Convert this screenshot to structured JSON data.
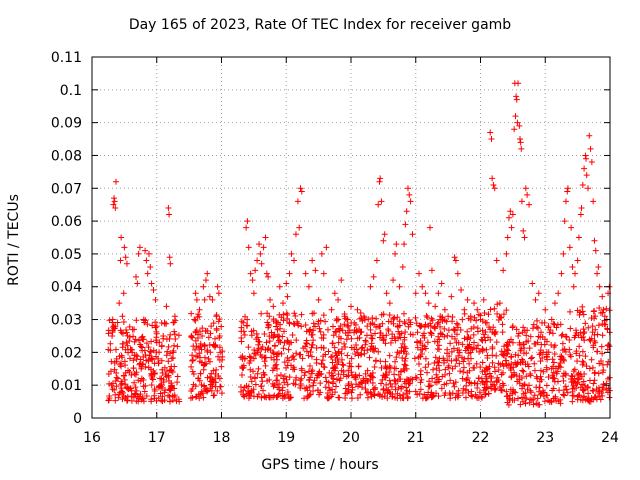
{
  "chart_data": {
    "type": "scatter",
    "title": "Day 165 of 2023, Rate Of TEC Index for receiver gamb",
    "xlabel": "GPS time / hours",
    "ylabel": "ROTI / TECUs",
    "xlim": [
      16,
      24
    ],
    "ylim": [
      0,
      0.11
    ],
    "x_ticks": [
      16,
      17,
      18,
      19,
      20,
      21,
      22,
      23,
      24
    ],
    "x_tick_labels": [
      "16",
      "17",
      "18",
      "19",
      "20",
      "21",
      "22",
      "23",
      "24"
    ],
    "y_ticks": [
      0,
      0.01,
      0.02,
      0.03,
      0.04,
      0.05,
      0.06,
      0.07,
      0.08,
      0.09,
      0.1,
      0.11
    ],
    "y_tick_labels": [
      "0",
      "0.01",
      "0.02",
      "0.03",
      "0.04",
      "0.05",
      "0.06",
      "0.07",
      "0.08",
      "0.09",
      "0.1",
      "0.11"
    ],
    "grid": true,
    "marker": "+",
    "marker_color": "#ff0000",
    "series": [
      {
        "name": "ROTI",
        "points": [
          [
            16.3,
            0.01
          ],
          [
            16.31,
            0.025
          ],
          [
            16.32,
            0.03
          ],
          [
            16.33,
            0.065
          ],
          [
            16.34,
            0.067
          ],
          [
            16.35,
            0.066
          ],
          [
            16.36,
            0.064
          ],
          [
            16.37,
            0.072
          ],
          [
            16.38,
            0.018
          ],
          [
            16.4,
            0.012
          ],
          [
            16.42,
            0.035
          ],
          [
            16.44,
            0.048
          ],
          [
            16.45,
            0.055
          ],
          [
            16.47,
            0.031
          ],
          [
            16.49,
            0.038
          ],
          [
            16.5,
            0.052
          ],
          [
            16.52,
            0.049
          ],
          [
            16.54,
            0.047
          ],
          [
            16.55,
            0.022
          ],
          [
            16.58,
            0.014
          ],
          [
            16.6,
            0.009
          ],
          [
            16.62,
            0.02
          ],
          [
            16.65,
            0.027
          ],
          [
            16.68,
            0.043
          ],
          [
            16.7,
            0.041
          ],
          [
            16.72,
            0.05
          ],
          [
            16.74,
            0.052
          ],
          [
            16.76,
            0.015
          ],
          [
            16.78,
            0.024
          ],
          [
            16.8,
            0.03
          ],
          [
            16.82,
            0.051
          ],
          [
            16.84,
            0.048
          ],
          [
            16.86,
            0.044
          ],
          [
            16.88,
            0.05
          ],
          [
            16.9,
            0.046
          ],
          [
            16.92,
            0.041
          ],
          [
            16.95,
            0.039
          ],
          [
            16.98,
            0.036
          ],
          [
            17.0,
            0.028
          ],
          [
            17.02,
            0.018
          ],
          [
            17.05,
            0.012
          ],
          [
            17.08,
            0.022
          ],
          [
            17.1,
            0.025
          ],
          [
            17.12,
            0.029
          ],
          [
            17.15,
            0.034
          ],
          [
            17.18,
            0.064
          ],
          [
            17.19,
            0.062
          ],
          [
            17.2,
            0.049
          ],
          [
            17.21,
            0.047
          ],
          [
            17.25,
            0.02
          ],
          [
            17.28,
            0.031
          ],
          [
            17.58,
            0.03
          ],
          [
            17.6,
            0.038
          ],
          [
            17.62,
            0.036
          ],
          [
            17.64,
            0.012
          ],
          [
            17.66,
            0.033
          ],
          [
            17.7,
            0.025
          ],
          [
            17.72,
            0.04
          ],
          [
            17.74,
            0.036
          ],
          [
            17.76,
            0.042
          ],
          [
            17.78,
            0.044
          ],
          [
            17.8,
            0.018
          ],
          [
            17.82,
            0.037
          ],
          [
            17.84,
            0.028
          ],
          [
            17.86,
            0.036
          ],
          [
            17.88,
            0.011
          ],
          [
            17.9,
            0.022
          ],
          [
            17.92,
            0.031
          ],
          [
            17.94,
            0.04
          ],
          [
            17.96,
            0.038
          ],
          [
            17.98,
            0.02
          ],
          [
            18.38,
            0.058
          ],
          [
            18.4,
            0.06
          ],
          [
            18.42,
            0.052
          ],
          [
            18.45,
            0.044
          ],
          [
            18.48,
            0.042
          ],
          [
            18.5,
            0.038
          ],
          [
            18.52,
            0.045
          ],
          [
            18.55,
            0.048
          ],
          [
            18.58,
            0.053
          ],
          [
            18.6,
            0.05
          ],
          [
            18.62,
            0.047
          ],
          [
            18.65,
            0.052
          ],
          [
            18.68,
            0.055
          ],
          [
            18.7,
            0.044
          ],
          [
            18.72,
            0.043
          ],
          [
            18.75,
            0.036
          ],
          [
            18.8,
            0.034
          ],
          [
            18.85,
            0.029
          ],
          [
            18.9,
            0.04
          ],
          [
            18.95,
            0.035
          ],
          [
            19.0,
            0.041
          ],
          [
            19.02,
            0.037
          ],
          [
            19.05,
            0.044
          ],
          [
            19.08,
            0.05
          ],
          [
            19.12,
            0.048
          ],
          [
            19.15,
            0.056
          ],
          [
            19.18,
            0.066
          ],
          [
            19.2,
            0.058
          ],
          [
            19.22,
            0.07
          ],
          [
            19.24,
            0.069
          ],
          [
            19.3,
            0.044
          ],
          [
            19.35,
            0.04
          ],
          [
            19.4,
            0.048
          ],
          [
            19.45,
            0.045
          ],
          [
            19.5,
            0.036
          ],
          [
            19.55,
            0.05
          ],
          [
            19.58,
            0.044
          ],
          [
            19.62,
            0.052
          ],
          [
            19.7,
            0.033
          ],
          [
            19.75,
            0.038
          ],
          [
            19.8,
            0.036
          ],
          [
            19.85,
            0.042
          ],
          [
            19.9,
            0.031
          ],
          [
            19.95,
            0.03
          ],
          [
            20.0,
            0.034
          ],
          [
            20.05,
            0.029
          ],
          [
            20.1,
            0.033
          ],
          [
            20.15,
            0.032
          ],
          [
            20.2,
            0.031
          ],
          [
            20.25,
            0.028
          ],
          [
            20.3,
            0.04
          ],
          [
            20.35,
            0.043
          ],
          [
            20.4,
            0.048
          ],
          [
            20.42,
            0.065
          ],
          [
            20.44,
            0.072
          ],
          [
            20.45,
            0.073
          ],
          [
            20.47,
            0.066
          ],
          [
            20.5,
            0.054
          ],
          [
            20.52,
            0.056
          ],
          [
            20.55,
            0.038
          ],
          [
            20.6,
            0.035
          ],
          [
            20.65,
            0.042
          ],
          [
            20.68,
            0.05
          ],
          [
            20.7,
            0.053
          ],
          [
            20.75,
            0.04
          ],
          [
            20.8,
            0.046
          ],
          [
            20.82,
            0.053
          ],
          [
            20.84,
            0.059
          ],
          [
            20.86,
            0.063
          ],
          [
            20.88,
            0.07
          ],
          [
            20.9,
            0.068
          ],
          [
            20.92,
            0.066
          ],
          [
            20.95,
            0.056
          ],
          [
            21.0,
            0.038
          ],
          [
            21.05,
            0.044
          ],
          [
            21.1,
            0.04
          ],
          [
            21.15,
            0.038
          ],
          [
            21.2,
            0.035
          ],
          [
            21.22,
            0.058
          ],
          [
            21.25,
            0.045
          ],
          [
            21.3,
            0.034
          ],
          [
            21.35,
            0.038
          ],
          [
            21.4,
            0.041
          ],
          [
            21.45,
            0.033
          ],
          [
            21.5,
            0.031
          ],
          [
            21.55,
            0.037
          ],
          [
            21.6,
            0.049
          ],
          [
            21.62,
            0.048
          ],
          [
            21.65,
            0.044
          ],
          [
            21.7,
            0.039
          ],
          [
            21.75,
            0.033
          ],
          [
            21.8,
            0.036
          ],
          [
            21.85,
            0.031
          ],
          [
            21.9,
            0.035
          ],
          [
            21.95,
            0.033
          ],
          [
            22.0,
            0.03
          ],
          [
            22.05,
            0.036
          ],
          [
            22.1,
            0.029
          ],
          [
            22.15,
            0.087
          ],
          [
            22.17,
            0.085
          ],
          [
            22.18,
            0.073
          ],
          [
            22.2,
            0.071
          ],
          [
            22.22,
            0.07
          ],
          [
            22.25,
            0.048
          ],
          [
            22.3,
            0.035
          ],
          [
            22.35,
            0.045
          ],
          [
            22.4,
            0.05
          ],
          [
            22.42,
            0.055
          ],
          [
            22.44,
            0.061
          ],
          [
            22.46,
            0.063
          ],
          [
            22.48,
            0.058
          ],
          [
            22.5,
            0.062
          ],
          [
            22.52,
            0.088
          ],
          [
            22.53,
            0.102
          ],
          [
            22.54,
            0.092
          ],
          [
            22.55,
            0.098
          ],
          [
            22.56,
            0.097
          ],
          [
            22.57,
            0.09
          ],
          [
            22.58,
            0.102
          ],
          [
            22.6,
            0.089
          ],
          [
            22.61,
            0.085
          ],
          [
            22.62,
            0.084
          ],
          [
            22.63,
            0.082
          ],
          [
            22.64,
            0.066
          ],
          [
            22.66,
            0.057
          ],
          [
            22.68,
            0.055
          ],
          [
            22.7,
            0.07
          ],
          [
            22.72,
            0.068
          ],
          [
            22.75,
            0.065
          ],
          [
            22.8,
            0.041
          ],
          [
            22.85,
            0.036
          ],
          [
            22.9,
            0.038
          ],
          [
            22.95,
            0.029
          ],
          [
            23.0,
            0.033
          ],
          [
            23.05,
            0.028
          ],
          [
            23.1,
            0.03
          ],
          [
            23.15,
            0.035
          ],
          [
            23.2,
            0.038
          ],
          [
            23.25,
            0.044
          ],
          [
            23.28,
            0.05
          ],
          [
            23.3,
            0.06
          ],
          [
            23.32,
            0.066
          ],
          [
            23.34,
            0.069
          ],
          [
            23.35,
            0.07
          ],
          [
            23.38,
            0.052
          ],
          [
            23.4,
            0.058
          ],
          [
            23.42,
            0.046
          ],
          [
            23.44,
            0.04
          ],
          [
            23.46,
            0.044
          ],
          [
            23.5,
            0.048
          ],
          [
            23.52,
            0.055
          ],
          [
            23.55,
            0.062
          ],
          [
            23.56,
            0.064
          ],
          [
            23.58,
            0.071
          ],
          [
            23.6,
            0.076
          ],
          [
            23.62,
            0.08
          ],
          [
            23.63,
            0.079
          ],
          [
            23.64,
            0.074
          ],
          [
            23.66,
            0.07
          ],
          [
            23.68,
            0.086
          ],
          [
            23.7,
            0.082
          ],
          [
            23.72,
            0.078
          ],
          [
            23.74,
            0.066
          ],
          [
            23.76,
            0.054
          ],
          [
            23.78,
            0.051
          ],
          [
            23.8,
            0.044
          ],
          [
            23.82,
            0.046
          ],
          [
            23.84,
            0.04
          ],
          [
            23.86,
            0.032
          ],
          [
            23.88,
            0.037
          ],
          [
            23.9,
            0.033
          ],
          [
            23.92,
            0.031
          ],
          [
            23.95,
            0.03
          ],
          [
            23.97,
            0.038
          ],
          [
            23.99,
            0.04
          ]
        ],
        "dense_bands": [
          {
            "x_range": [
              16.25,
              17.35
            ],
            "y_range": [
              0.005,
              0.03
            ]
          },
          {
            "x_range": [
              17.52,
              18.02
            ],
            "y_range": [
              0.006,
              0.032
            ]
          },
          {
            "x_range": [
              18.3,
              22.15
            ],
            "y_range": [
              0.006,
              0.032
            ]
          },
          {
            "x_range": [
              22.15,
              22.4
            ],
            "y_range": [
              0.008,
              0.035
            ]
          },
          {
            "x_range": [
              22.4,
              23.3
            ],
            "y_range": [
              0.004,
              0.03
            ]
          },
          {
            "x_range": [
              23.3,
              24.0
            ],
            "y_range": [
              0.005,
              0.034
            ]
          }
        ]
      }
    ]
  }
}
